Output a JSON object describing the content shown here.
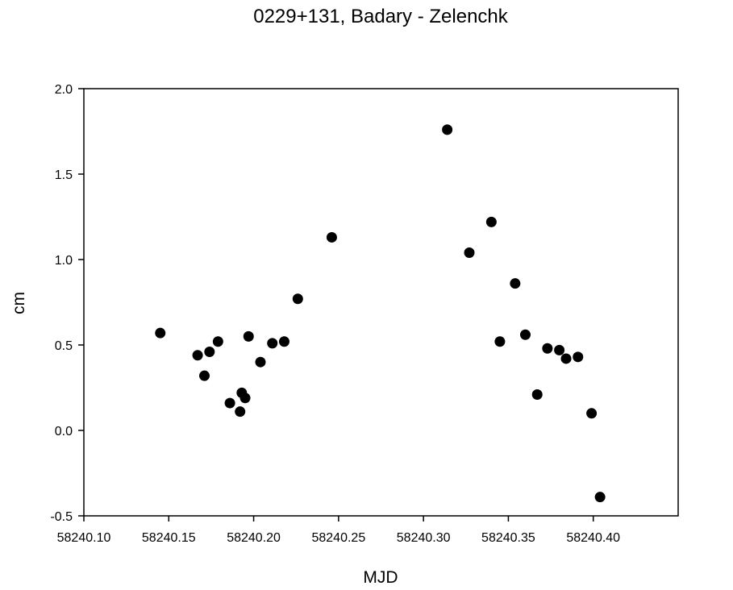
{
  "chart_data": {
    "type": "scatter",
    "title": "0229+131, Badary - Zelenchk",
    "xlabel": "MJD",
    "ylabel": "cm",
    "xlim": [
      58240.1,
      58240.45
    ],
    "ylim": [
      -0.5,
      2.0
    ],
    "xticks": [
      58240.1,
      58240.15,
      58240.2,
      58240.25,
      58240.3,
      58240.35,
      58240.4
    ],
    "xtick_labels": [
      "58240.10",
      "58240.15",
      "58240.20",
      "58240.25",
      "58240.30",
      "58240.35",
      "58240.40"
    ],
    "yticks": [
      -0.5,
      0.0,
      0.5,
      1.0,
      1.5,
      2.0
    ],
    "ytick_labels": [
      "-0.5",
      "0.0",
      "0.5",
      "1.0",
      "1.5",
      "2.0"
    ],
    "grid": false,
    "marker_color": "#000000",
    "series": [
      {
        "points": [
          {
            "x": 58240.145,
            "y": 0.57
          },
          {
            "x": 58240.167,
            "y": 0.44
          },
          {
            "x": 58240.171,
            "y": 0.32
          },
          {
            "x": 58240.174,
            "y": 0.46
          },
          {
            "x": 58240.179,
            "y": 0.52
          },
          {
            "x": 58240.186,
            "y": 0.16
          },
          {
            "x": 58240.192,
            "y": 0.11
          },
          {
            "x": 58240.193,
            "y": 0.22
          },
          {
            "x": 58240.195,
            "y": 0.19
          },
          {
            "x": 58240.197,
            "y": 0.55
          },
          {
            "x": 58240.204,
            "y": 0.4
          },
          {
            "x": 58240.211,
            "y": 0.51
          },
          {
            "x": 58240.218,
            "y": 0.52
          },
          {
            "x": 58240.226,
            "y": 0.77
          },
          {
            "x": 58240.246,
            "y": 1.13
          },
          {
            "x": 58240.314,
            "y": 1.76
          },
          {
            "x": 58240.327,
            "y": 1.04
          },
          {
            "x": 58240.34,
            "y": 1.22
          },
          {
            "x": 58240.345,
            "y": 0.52
          },
          {
            "x": 58240.354,
            "y": 0.86
          },
          {
            "x": 58240.36,
            "y": 0.56
          },
          {
            "x": 58240.367,
            "y": 0.21
          },
          {
            "x": 58240.373,
            "y": 0.48
          },
          {
            "x": 58240.38,
            "y": 0.47
          },
          {
            "x": 58240.384,
            "y": 0.42
          },
          {
            "x": 58240.391,
            "y": 0.43
          },
          {
            "x": 58240.399,
            "y": 0.1
          },
          {
            "x": 58240.404,
            "y": -0.39
          }
        ]
      }
    ]
  }
}
